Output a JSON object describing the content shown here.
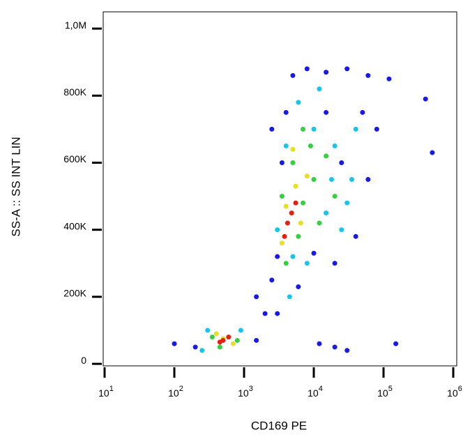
{
  "chart_data": {
    "type": "scatter",
    "x_label": "CD169 PE",
    "y_label": "SS-A :: SS INT LIN",
    "xscale": "log",
    "xlim": [
      10,
      1000000
    ],
    "xticks": [
      {
        "value": 10,
        "label": "10",
        "sup": "1"
      },
      {
        "value": 100,
        "label": "10",
        "sup": "2"
      },
      {
        "value": 1000,
        "label": "10",
        "sup": "3"
      },
      {
        "value": 10000,
        "label": "10",
        "sup": "4"
      },
      {
        "value": 100000,
        "label": "10",
        "sup": "5"
      },
      {
        "value": 1000000,
        "label": "10",
        "sup": "6"
      }
    ],
    "ylim": [
      -6000,
      1050000
    ],
    "yticks": [
      0,
      {
        "value": 200000,
        "label": "200K"
      },
      {
        "value": 400000,
        "label": "400K"
      },
      {
        "value": 600000,
        "label": "600K"
      },
      {
        "value": 800000,
        "label": "800K"
      },
      {
        "value": 1000000,
        "label": "1,0M"
      }
    ],
    "series": [
      {
        "color": "#1a1ae6",
        "x": [
          100,
          200,
          1500,
          2000,
          1500,
          2500,
          3000,
          3500,
          4000,
          5000,
          8000,
          15000,
          30000,
          60000,
          80000,
          60000,
          40000,
          20000,
          10000,
          25000,
          15000,
          50000,
          120000,
          3000,
          20000,
          30000,
          12000,
          500000,
          400000,
          150000,
          6000,
          2500
        ],
        "y": [
          60000,
          50000,
          70000,
          150000,
          200000,
          250000,
          320000,
          600000,
          750000,
          860000,
          880000,
          870000,
          880000,
          860000,
          700000,
          550000,
          380000,
          300000,
          330000,
          600000,
          750000,
          750000,
          850000,
          150000,
          50000,
          40000,
          60000,
          630000,
          790000,
          60000,
          230000,
          700000
        ]
      },
      {
        "color": "#18c4e8",
        "x": [
          300,
          900,
          250,
          3000,
          4000,
          6000,
          10000,
          20000,
          35000,
          15000,
          8000,
          25000,
          5000,
          4500,
          12000,
          40000,
          18000,
          30000
        ],
        "y": [
          100000,
          100000,
          40000,
          400000,
          650000,
          780000,
          700000,
          650000,
          550000,
          450000,
          300000,
          400000,
          320000,
          200000,
          820000,
          700000,
          550000,
          480000
        ]
      },
      {
        "color": "#34d040",
        "x": [
          350,
          800,
          450,
          3500,
          5000,
          7000,
          10000,
          6000,
          4000,
          9000,
          12000,
          7000,
          20000,
          15000
        ],
        "y": [
          80000,
          70000,
          50000,
          500000,
          600000,
          480000,
          550000,
          380000,
          300000,
          650000,
          420000,
          700000,
          500000,
          620000
        ]
      },
      {
        "color": "#e6e020",
        "x": [
          400,
          700,
          500,
          4000,
          5500,
          6500,
          3500,
          8000,
          5000
        ],
        "y": [
          90000,
          60000,
          75000,
          470000,
          530000,
          420000,
          360000,
          560000,
          640000
        ]
      },
      {
        "color": "#e62010",
        "x": [
          500,
          600,
          450,
          4200,
          4800,
          5500,
          3800
        ],
        "y": [
          70000,
          80000,
          65000,
          420000,
          450000,
          480000,
          380000
        ]
      }
    ]
  }
}
